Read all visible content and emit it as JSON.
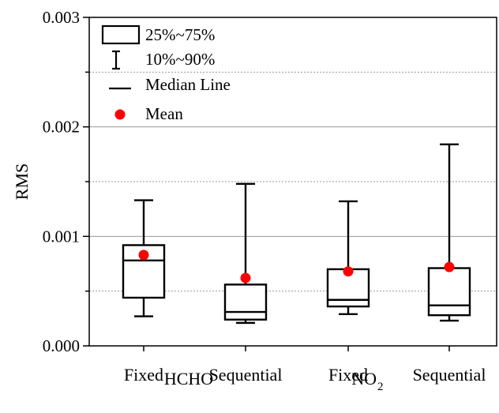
{
  "chart_data": {
    "type": "box",
    "ylabel": "RMS",
    "ylim": [
      0,
      0.003
    ],
    "yticks": [
      "0.000",
      "0.001",
      "0.002",
      "0.003"
    ],
    "minor_grid": [
      0.0005,
      0.0015,
      0.0025
    ],
    "legend_position": "top-left",
    "legend": {
      "box": "25%~75%",
      "whisker": "10%~90%",
      "median": "Median Line",
      "mean": "Mean"
    },
    "mean_color": "#ff0000",
    "groups": [
      {
        "label": "HCHO",
        "sub": ""
      },
      {
        "label": "NO",
        "sub": "2"
      }
    ],
    "boxes": [
      {
        "category": "Fixed",
        "group": 0,
        "p10": 0.00027,
        "q1": 0.00044,
        "median": 0.00078,
        "q3": 0.00092,
        "p90": 0.00133,
        "mean": 0.00083
      },
      {
        "category": "Sequential",
        "group": 0,
        "p10": 0.00021,
        "q1": 0.00024,
        "median": 0.00031,
        "q3": 0.00056,
        "p90": 0.00148,
        "mean": 0.00062
      },
      {
        "category": "Fixed",
        "group": 1,
        "p10": 0.00029,
        "q1": 0.00036,
        "median": 0.00042,
        "q3": 0.0007,
        "p90": 0.00132,
        "mean": 0.00068
      },
      {
        "category": "Sequential",
        "group": 1,
        "p10": 0.00023,
        "q1": 0.00028,
        "median": 0.00037,
        "q3": 0.00071,
        "p90": 0.00184,
        "mean": 0.00072
      }
    ]
  }
}
